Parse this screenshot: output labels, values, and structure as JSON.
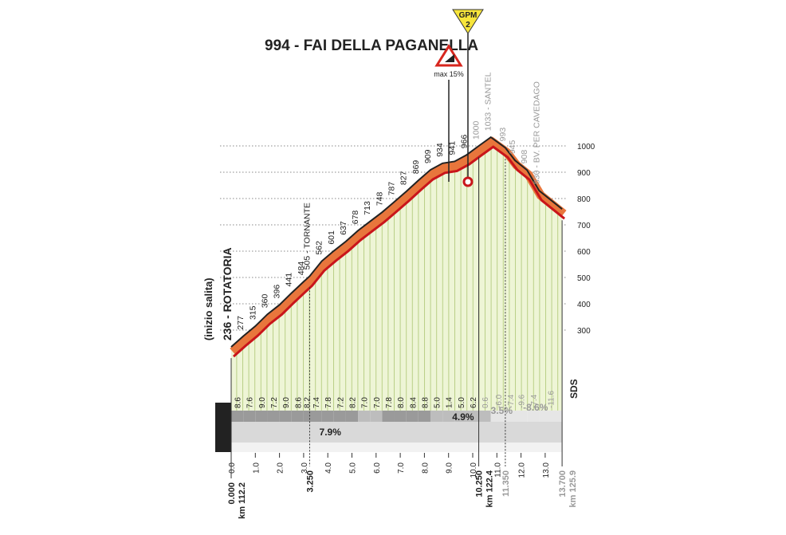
{
  "chart_data": {
    "type": "elevation-profile",
    "title": "994 - FAI DELLA PAGANELLA",
    "gpm": {
      "label": "GPM",
      "category": "2"
    },
    "max_gradient": "max 15%",
    "start_note": "(inizio salita)",
    "sponsor": "SDS",
    "x": [
      0,
      0.5,
      1,
      1.5,
      2,
      2.5,
      3,
      3.25,
      3.75,
      4.25,
      4.75,
      5.25,
      5.75,
      6.25,
      6.75,
      7.25,
      7.75,
      8.25,
      8.75,
      9.25,
      9.75,
      10.25,
      10.75,
      11.35,
      11.75,
      12.25,
      12.75,
      13.7
    ],
    "values": [
      236,
      277,
      315,
      360,
      396,
      441,
      484,
      505,
      562,
      601,
      637,
      678,
      713,
      748,
      787,
      827,
      869,
      909,
      934,
      941,
      966,
      1000,
      1033,
      993,
      945,
      908,
      830,
      760
    ],
    "value_labels": [
      "236 - ROTATORIA",
      "277",
      "315",
      "360",
      "396",
      "441",
      "484",
      "505 - TORNANTE",
      "562",
      "601",
      "637",
      "678",
      "713",
      "748",
      "787",
      "827",
      "869",
      "909",
      "934",
      "941",
      "966",
      "1000",
      "1033 - SANTEL",
      "993",
      "945",
      "908",
      "830 - BV. PER CAVEDAGO",
      null
    ],
    "gradients": {
      "values": [
        8.6,
        7.6,
        9.0,
        7.2,
        9.0,
        8.6,
        8.2,
        7.4,
        7.8,
        7.2,
        8.2,
        7.0,
        7.0,
        7.8,
        8.0,
        8.4,
        8.8,
        5.0,
        1.4,
        5.0,
        6.2,
        0.6,
        -6.0,
        -7.4,
        -9.6,
        -7.4,
        -11.6
      ],
      "value_labels": [
        "8.6",
        "7.6",
        "9.0",
        "7.2",
        "9.0",
        "8.6",
        "8.2",
        "7.4",
        "7.8",
        "7.2",
        "8.2",
        "7.0",
        "7.0",
        "7.8",
        "8.0",
        "8.4",
        "8.8",
        "5.0",
        "1.4",
        "5.0",
        "6.2",
        "0.6",
        "-6.0",
        "-7.4",
        "-9.6",
        "-7.4",
        "-11.6"
      ]
    },
    "average_gradients": [
      "7.9%",
      "4.9%",
      "3.5%",
      "-8.6%"
    ],
    "stations": [
      {
        "km": 0,
        "label": "0.000",
        "total": "km 112.2"
      },
      {
        "km": 3.25,
        "label": "3.250"
      },
      {
        "km": 10.25,
        "label": "10.250",
        "total": "km 122.4"
      },
      {
        "km": 11.35,
        "label": "11.350"
      },
      {
        "km": 13.7,
        "label": "13.700",
        "total": "km 125.9"
      }
    ],
    "xlim": [
      0,
      13.7
    ],
    "xticks": [
      {
        "value": 0,
        "label": "0.0"
      },
      {
        "value": 1,
        "label": "1.0"
      },
      {
        "value": 2,
        "label": "2.0"
      },
      {
        "value": 3,
        "label": "3.0"
      },
      {
        "value": 4,
        "label": "4.0"
      },
      {
        "value": 5,
        "label": "5.0"
      },
      {
        "value": 6,
        "label": "6.0"
      },
      {
        "value": 7,
        "label": "7.0"
      },
      {
        "value": 8,
        "label": "8.0"
      },
      {
        "value": 9,
        "label": "9.0"
      },
      {
        "value": 10,
        "label": "10.0"
      },
      {
        "value": 11,
        "label": "11.0"
      },
      {
        "value": 12,
        "label": "12.0"
      },
      {
        "value": 13,
        "label": "13.0"
      }
    ],
    "ylim": [
      0,
      1000
    ],
    "yticks": [
      300,
      400,
      500,
      600,
      700,
      800,
      900,
      1000
    ],
    "grid": true
  }
}
